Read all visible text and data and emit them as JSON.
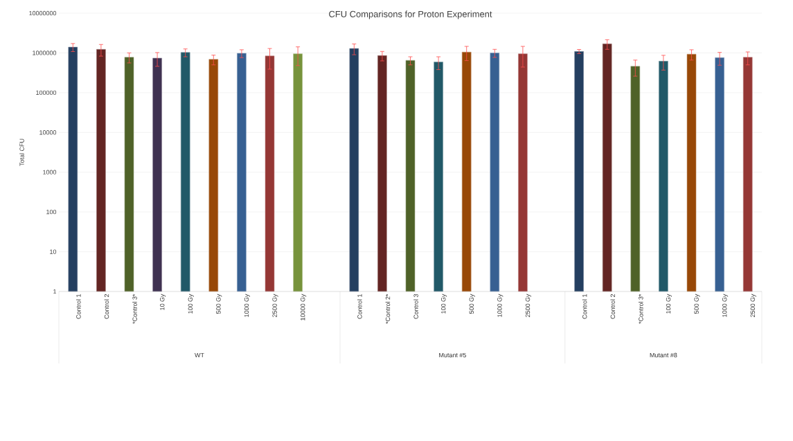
{
  "chart_data": {
    "type": "bar",
    "title": "CFU Comparisons for Proton Experiment",
    "ylabel": "Total CFU",
    "categories": [
      "Control 1",
      "Control 2",
      "*Control 3*",
      "10 Gy",
      "100 Gy",
      "500 Gy",
      "1000 Gy",
      "2500 Gy",
      "10000 Gy",
      null,
      "Control 1",
      "*Control 2*",
      "Control 3",
      "100 Gy",
      "500 Gy",
      "1000 Gy",
      "2500 Gy",
      null,
      "Control 1",
      "Control 2",
      "*Control 3*",
      "100 Gy",
      "500 Gy",
      "1000 Gy",
      "2500 Gy"
    ],
    "values": [
      1400000,
      1230000,
      780000,
      740000,
      1030000,
      690000,
      980000,
      840000,
      950000,
      null,
      1290000,
      860000,
      650000,
      590000,
      1050000,
      1000000,
      950000,
      null,
      1090000,
      1690000,
      460000,
      620000,
      930000,
      760000,
      780000
    ],
    "errors": [
      320000,
      400000,
      220000,
      280000,
      230000,
      190000,
      220000,
      450000,
      470000,
      null,
      390000,
      230000,
      150000,
      210000,
      410000,
      230000,
      510000,
      null,
      130000,
      460000,
      200000,
      250000,
      270000,
      270000,
      280000
    ],
    "colors": [
      "#243f60",
      "#632523",
      "#4f6228",
      "#3f3151",
      "#215968",
      "#984807",
      "#376092",
      "#953735",
      "#77933c",
      null,
      "#243f60",
      "#632523",
      "#4f6228",
      "#215968",
      "#984807",
      "#376092",
      "#953735",
      null,
      "#243f60",
      "#632523",
      "#4f6228",
      "#215968",
      "#984807",
      "#376092",
      "#953735"
    ],
    "annotations": [
      "WT",
      "Mutant #5",
      "Mutant #8"
    ],
    "log": true,
    "ylim": [
      1,
      10000000
    ],
    "yticks": [
      1,
      10,
      100,
      1000,
      10000,
      100000,
      1000000,
      10000000
    ],
    "grid": "y"
  }
}
